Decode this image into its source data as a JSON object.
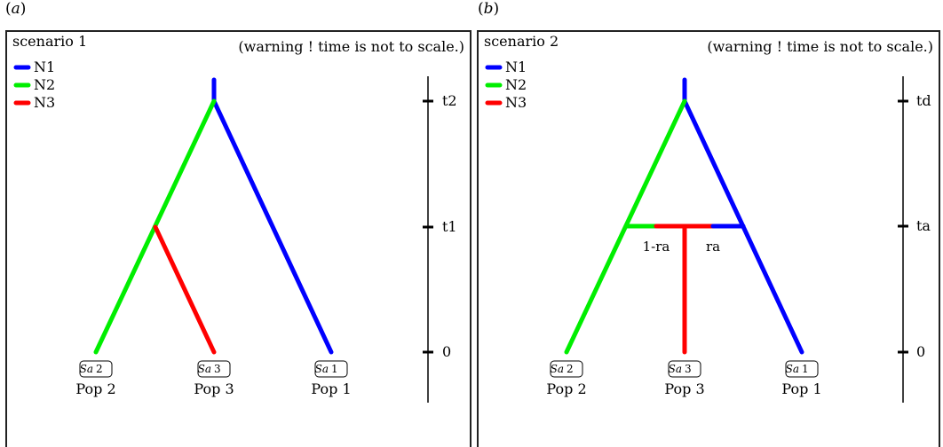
{
  "panels": [
    {
      "label_open": "(",
      "label_letter": "a",
      "label_close": ")",
      "title": "scenario 1",
      "warning": "(warning ! time is not to scale.)",
      "legend": [
        {
          "name": "N1",
          "color": "#0000ff"
        },
        {
          "name": "N2",
          "color": "#00ee00"
        },
        {
          "name": "N3",
          "color": "#ff0000"
        }
      ],
      "time_labels": [
        "t2",
        "t1",
        "0"
      ],
      "samples": [
        {
          "prefix": "Sa",
          "num": "2",
          "pop": "Pop 2"
        },
        {
          "prefix": "Sa",
          "num": "3",
          "pop": "Pop 3"
        },
        {
          "prefix": "Sa",
          "num": "1",
          "pop": "Pop 1"
        }
      ]
    },
    {
      "label_open": "(",
      "label_letter": "b",
      "label_close": ")",
      "title": "scenario 2",
      "warning": "(warning ! time is not to scale.)",
      "legend": [
        {
          "name": "N1",
          "color": "#0000ff"
        },
        {
          "name": "N2",
          "color": "#00ee00"
        },
        {
          "name": "N3",
          "color": "#ff0000"
        }
      ],
      "time_labels": [
        "td",
        "ta",
        "0"
      ],
      "admix_labels": [
        "1-ra",
        "ra"
      ],
      "samples": [
        {
          "prefix": "Sa",
          "num": "2",
          "pop": "Pop 2"
        },
        {
          "prefix": "Sa",
          "num": "3",
          "pop": "Pop 3"
        },
        {
          "prefix": "Sa",
          "num": "1",
          "pop": "Pop 1"
        }
      ]
    }
  ],
  "colors": {
    "n1": "#0000ff",
    "n2": "#00ee00",
    "n3": "#ff0000"
  }
}
